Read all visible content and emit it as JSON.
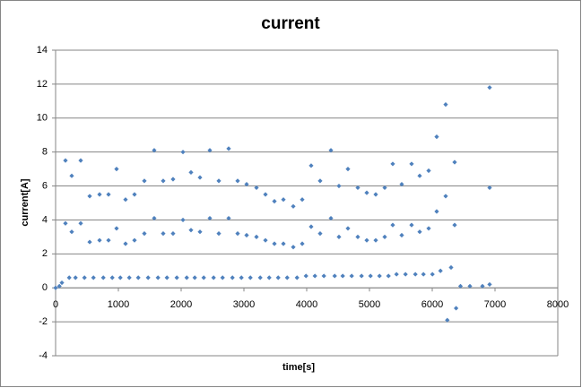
{
  "chart_data": {
    "type": "scatter",
    "title": "current",
    "x_label": "time[s]",
    "y_label": "current[A]",
    "xlim": [
      0,
      8000
    ],
    "xticks": [
      0,
      1000,
      2000,
      3000,
      4000,
      5000,
      6000,
      7000,
      8000
    ],
    "ylim": [
      -4,
      14
    ],
    "yticks": [
      -4,
      -2,
      0,
      2,
      4,
      6,
      8,
      10,
      12,
      14
    ],
    "grid": true,
    "series": [
      {
        "color": "#4f81bd",
        "x": [
          0,
          60,
          100,
          157,
          157,
          217,
          257,
          257,
          317,
          400,
          400,
          460,
          543,
          543,
          603,
          700,
          700,
          760,
          843,
          843,
          903,
          971,
          971,
          1031,
          1114,
          1114,
          1174,
          1257,
          1257,
          1317,
          1414,
          1414,
          1474,
          1571,
          1571,
          1631,
          1714,
          1714,
          1774,
          1871,
          1871,
          1931,
          2029,
          2029,
          2089,
          2157,
          2157,
          2217,
          2300,
          2300,
          2360,
          2457,
          2457,
          2517,
          2600,
          2600,
          2660,
          2757,
          2757,
          2817,
          2900,
          2900,
          2960,
          3043,
          3043,
          3103,
          3200,
          3200,
          3260,
          3343,
          3343,
          3403,
          3486,
          3486,
          3546,
          3629,
          3629,
          3689,
          3786,
          3786,
          3846,
          3929,
          3929,
          3989,
          4071,
          4071,
          4131,
          4214,
          4214,
          4274,
          4386,
          4386,
          4446,
          4514,
          4514,
          4574,
          4657,
          4657,
          4717,
          4814,
          4814,
          4874,
          4957,
          4957,
          5017,
          5100,
          5100,
          5160,
          5243,
          5243,
          5303,
          5371,
          5371,
          5431,
          5514,
          5514,
          5574,
          5671,
          5671,
          5731,
          5800,
          5800,
          5860,
          5943,
          5943,
          6003,
          6071,
          6071,
          6131,
          6214,
          6214,
          6240,
          6300,
          6357,
          6357,
          6380,
          6450,
          6600,
          6800,
          6914,
          6914,
          6914
        ],
        "values": [
          0,
          0.1,
          0.3,
          7.5,
          3.8,
          0.6,
          6.6,
          3.3,
          0.6,
          7.5,
          3.8,
          0.6,
          5.4,
          2.7,
          0.6,
          5.5,
          2.8,
          0.6,
          5.5,
          2.8,
          0.6,
          7.0,
          3.5,
          0.6,
          5.2,
          2.6,
          0.6,
          5.5,
          2.8,
          0.6,
          6.3,
          3.2,
          0.6,
          8.1,
          4.1,
          0.6,
          6.3,
          3.2,
          0.6,
          6.4,
          3.2,
          0.6,
          8.0,
          4.0,
          0.6,
          6.8,
          3.4,
          0.6,
          6.5,
          3.3,
          0.6,
          8.1,
          4.1,
          0.6,
          6.3,
          3.2,
          0.6,
          8.2,
          4.1,
          0.6,
          6.3,
          3.2,
          0.6,
          6.1,
          3.1,
          0.6,
          5.9,
          3.0,
          0.6,
          5.5,
          2.8,
          0.6,
          5.1,
          2.6,
          0.6,
          5.2,
          2.6,
          0.6,
          4.8,
          2.4,
          0.6,
          5.2,
          2.6,
          0.7,
          7.2,
          3.6,
          0.7,
          6.3,
          3.2,
          0.7,
          8.1,
          4.1,
          0.7,
          6.0,
          3.0,
          0.7,
          7.0,
          3.5,
          0.7,
          5.9,
          3.0,
          0.7,
          5.6,
          2.8,
          0.7,
          5.5,
          2.8,
          0.7,
          5.9,
          3.0,
          0.7,
          7.3,
          3.7,
          0.8,
          6.1,
          3.1,
          0.8,
          7.3,
          3.7,
          0.8,
          6.6,
          3.3,
          0.8,
          6.9,
          3.5,
          0.8,
          8.9,
          4.5,
          1.0,
          10.8,
          5.4,
          -1.9,
          1.2,
          7.4,
          3.7,
          -1.2,
          0.1,
          0.1,
          0.1,
          11.8,
          5.9,
          0.2
        ]
      }
    ]
  }
}
